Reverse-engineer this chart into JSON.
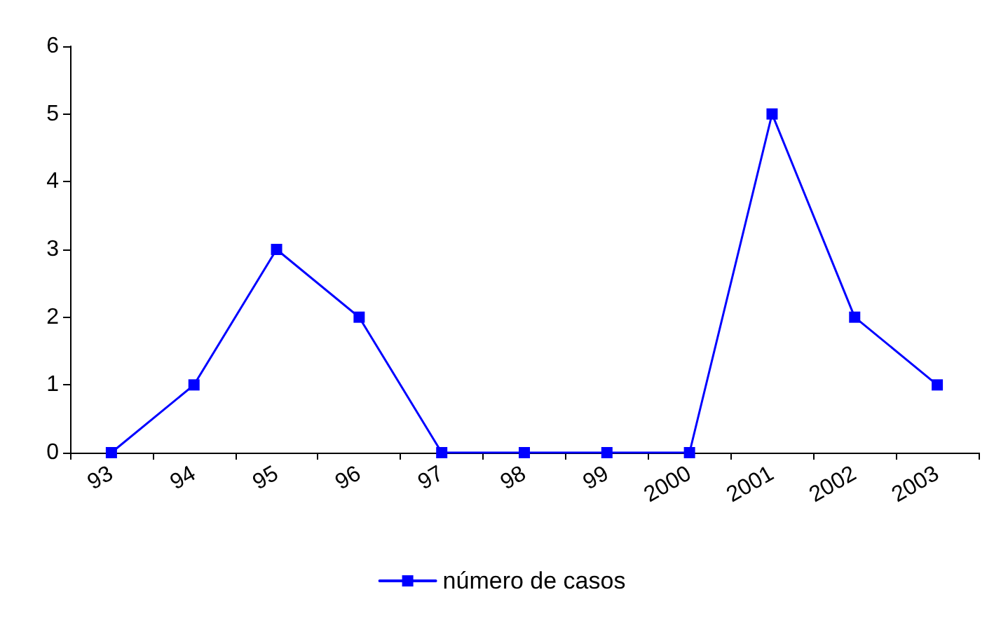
{
  "chart_data": {
    "type": "line",
    "categories": [
      "93",
      "94",
      "95",
      "96",
      "97",
      "98",
      "99",
      "2000",
      "2001",
      "2002",
      "2003"
    ],
    "series": [
      {
        "name": "número de casos",
        "color": "#0000ff",
        "values": [
          0,
          1,
          3,
          2,
          0,
          0,
          0,
          0,
          5,
          2,
          1
        ]
      }
    ],
    "ylim": [
      0,
      6
    ],
    "yticks": [
      0,
      1,
      2,
      3,
      4,
      5,
      6
    ],
    "grid": false,
    "legend": "bottom",
    "marker": "square",
    "line_style": "solid"
  }
}
